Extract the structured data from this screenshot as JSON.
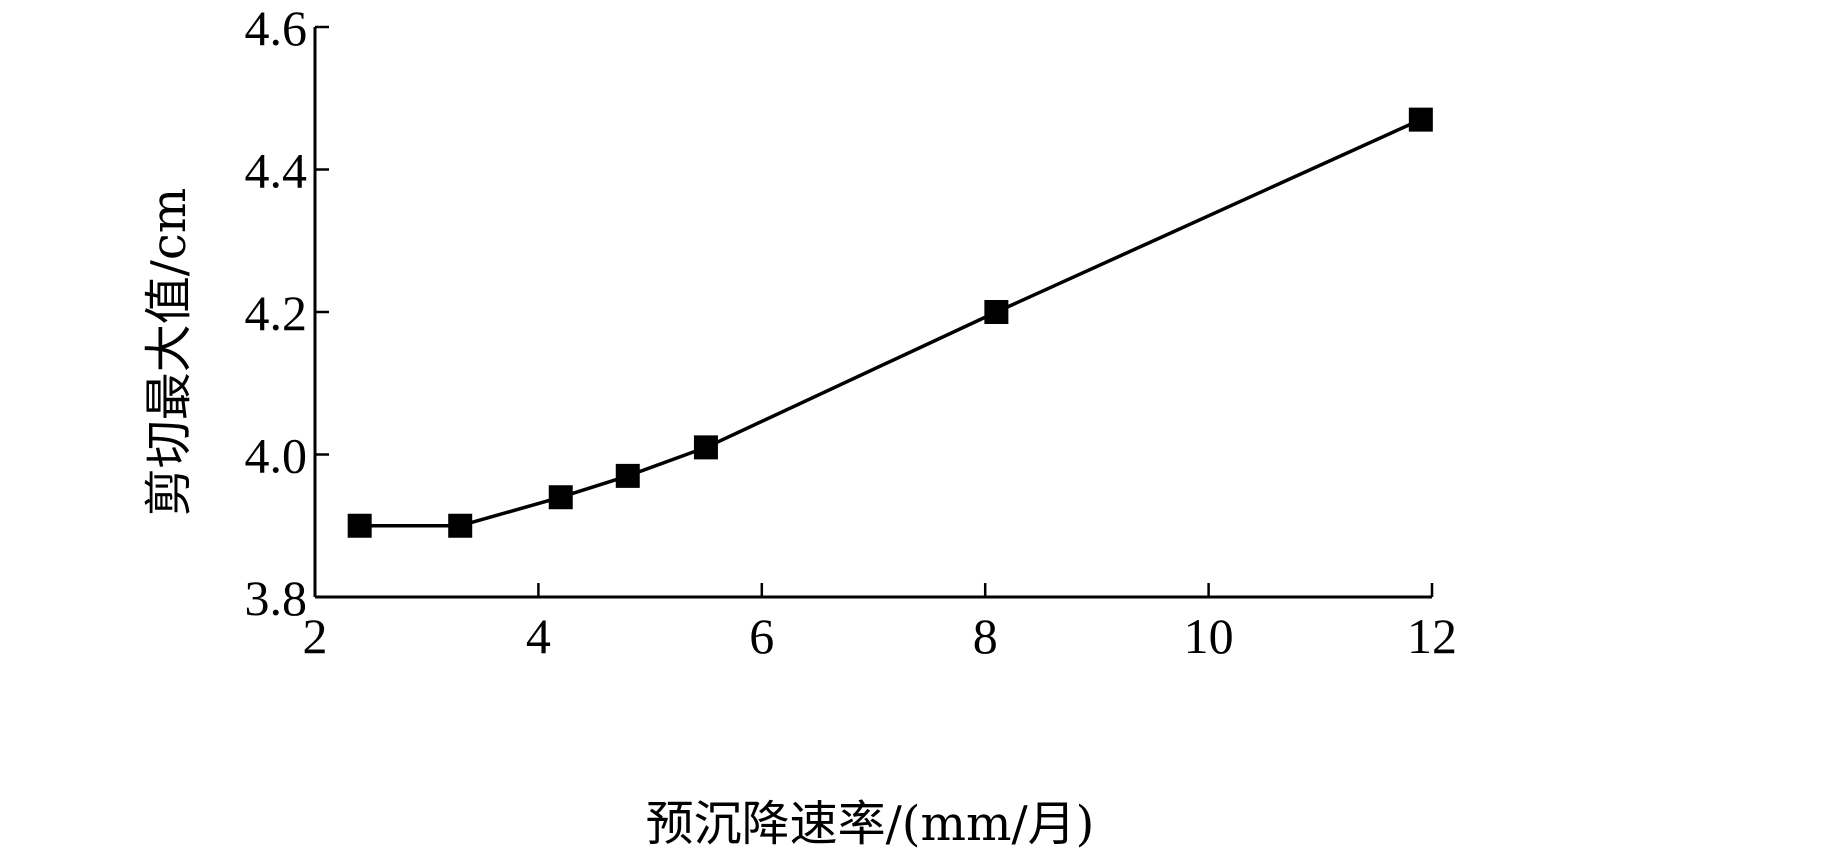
{
  "chart_data": {
    "type": "line",
    "title": "",
    "xlabel": "预沉降速率/(mm/月)",
    "ylabel": "剪切最大值/cm",
    "xlim": [
      2,
      12
    ],
    "ylim": [
      3.8,
      4.6
    ],
    "xticks": [
      2,
      4,
      6,
      8,
      10,
      12
    ],
    "yticks": [
      3.8,
      4.0,
      4.2,
      4.4,
      4.6
    ],
    "xtick_labels": [
      "2",
      "4",
      "6",
      "8",
      "10",
      "12"
    ],
    "ytick_labels": [
      "3.8",
      "4.0",
      "4.2",
      "4.4",
      "4.6"
    ],
    "grid": false,
    "legend": "none",
    "marker": "square",
    "color": "#000000",
    "series": [
      {
        "x": [
          2.4,
          3.3,
          4.2,
          4.8,
          5.5,
          8.1,
          11.9
        ],
        "y": [
          3.9,
          3.9,
          3.94,
          3.97,
          4.01,
          4.2,
          4.47
        ]
      }
    ]
  }
}
